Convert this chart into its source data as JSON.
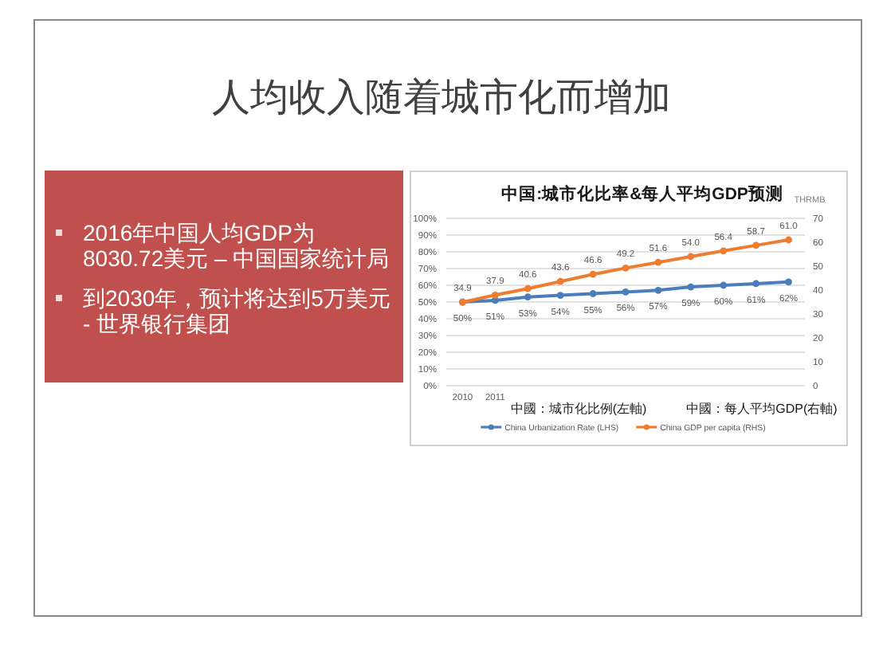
{
  "chart_data": {
    "type": "line",
    "title": "人均收入随着城市化而增加",
    "subtitle": "中国:城市化比率&每人平均GDP预测",
    "categories": [
      "2010",
      "2011",
      null,
      null,
      null,
      null,
      null,
      null,
      null,
      null,
      null
    ],
    "series": [
      {
        "name": "China Urbanization Rate (LHS)",
        "color": "#4a7ebb",
        "values": [
          50,
          51,
          53,
          54,
          55,
          56,
          57,
          59,
          60,
          61,
          62
        ],
        "value_labels": [
          "50%",
          "51%",
          "53%",
          "54%",
          "55%",
          "56%",
          "57%",
          "59%",
          "60%",
          "61%",
          "62%"
        ]
      },
      {
        "name": "China GDP per capita (RHS)",
        "color": "#ed7d31",
        "axis": "y2",
        "values": [
          34.9,
          37.9,
          40.6,
          43.6,
          46.6,
          49.2,
          51.6,
          54.0,
          56.4,
          58.7,
          61.0
        ],
        "value_labels": [
          "34.9",
          "37.9",
          "40.6",
          "43.6",
          "46.6",
          "49.2",
          "51.6",
          "54.0",
          "56.4",
          "58.7",
          "61.0"
        ]
      }
    ],
    "ylim": [
      0,
      100
    ],
    "yticks": [
      {
        "value": 0,
        "label": "0%"
      },
      {
        "value": 10,
        "label": "10%"
      },
      {
        "value": 20,
        "label": "20%"
      },
      {
        "value": 30,
        "label": "30%"
      },
      {
        "value": 40,
        "label": "40%"
      },
      {
        "value": 50,
        "label": "50%"
      },
      {
        "value": 60,
        "label": "60%"
      },
      {
        "value": 70,
        "label": "70%"
      },
      {
        "value": 80,
        "label": "80%"
      },
      {
        "value": 90,
        "label": "90%"
      },
      {
        "value": 100,
        "label": "100%"
      }
    ],
    "y2lim": [
      0,
      70
    ],
    "y2ticks": [
      0,
      10,
      20,
      30,
      40,
      50,
      60,
      70
    ],
    "grid": "y",
    "legend": "bottom",
    "marker": "circle",
    "annotations": [
      "THRMB",
      "中國：城市化比例(左軸)",
      "中國：每人平均GDP(右軸)",
      "2016年中国人均GDP为8030.72美元 – 中国国家统计局",
      "到2030年，预计将达到5万美元 - 世界银行集团"
    ]
  }
}
